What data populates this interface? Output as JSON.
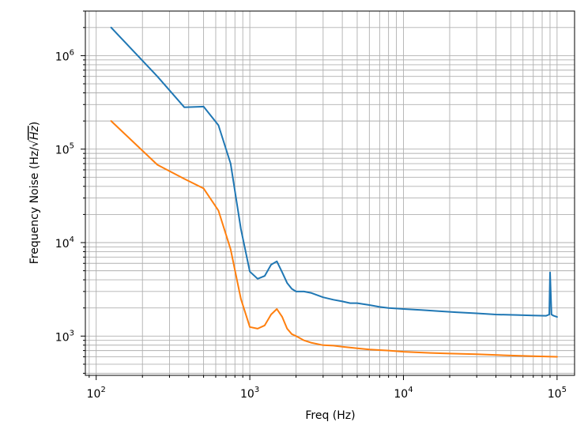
{
  "chart_data": {
    "type": "line",
    "title": "",
    "xlabel": "Freq (Hz)",
    "ylabel_main": "Frequency Noise (Hz/",
    "ylabel_sqrt": "√",
    "ylabel_radicand": "Hz",
    "ylabel_close": ")",
    "x_scale": "log",
    "y_scale": "log",
    "xlim": [
      85,
      130000
    ],
    "ylim": [
      380,
      3000000
    ],
    "grid": "both (major and minor)",
    "legend": "none",
    "x_ticks": [
      {
        "value": 100,
        "base": "10",
        "exp": "2"
      },
      {
        "value": 1000,
        "base": "10",
        "exp": "3"
      },
      {
        "value": 10000,
        "base": "10",
        "exp": "4"
      },
      {
        "value": 100000,
        "base": "10",
        "exp": "5"
      }
    ],
    "y_ticks": [
      {
        "value": 1000,
        "base": "10",
        "exp": "3"
      },
      {
        "value": 10000,
        "base": "10",
        "exp": "4"
      },
      {
        "value": 100000,
        "base": "10",
        "exp": "5"
      },
      {
        "value": 1000000,
        "base": "10",
        "exp": "6"
      }
    ],
    "series": [
      {
        "color": "#1f77b4",
        "x": [
          125,
          250,
          375,
          500,
          625,
          750,
          875,
          1000,
          1125,
          1250,
          1375,
          1500,
          1625,
          1750,
          1875,
          2000,
          2250,
          2500,
          3000,
          3500,
          4000,
          4500,
          5000,
          6000,
          7000,
          8000,
          10000,
          13000,
          17000,
          22000,
          30000,
          40000,
          55000,
          70000,
          85000,
          89000,
          90000,
          92000,
          95000,
          100000
        ],
        "y": [
          2000000,
          600000,
          280000,
          285000,
          180000,
          70000,
          14000,
          4900,
          4100,
          4400,
          5800,
          6300,
          4800,
          3700,
          3200,
          3000,
          3000,
          2900,
          2600,
          2450,
          2350,
          2250,
          2250,
          2150,
          2050,
          2000,
          1950,
          1900,
          1850,
          1800,
          1750,
          1700,
          1680,
          1660,
          1650,
          1700,
          4800,
          1700,
          1650,
          1600
        ]
      },
      {
        "color": "#ff7f0e",
        "x": [
          125,
          250,
          375,
          500,
          625,
          750,
          875,
          1000,
          1125,
          1250,
          1375,
          1500,
          1625,
          1750,
          1875,
          2000,
          2250,
          2500,
          3000,
          3500,
          4000,
          5000,
          6000,
          8000,
          10000,
          15000,
          20000,
          30000,
          50000,
          70000,
          100000
        ],
        "y": [
          200000,
          68000,
          48000,
          38000,
          22000,
          8500,
          2500,
          1250,
          1200,
          1300,
          1700,
          1950,
          1600,
          1200,
          1050,
          1000,
          900,
          850,
          800,
          790,
          770,
          740,
          720,
          700,
          680,
          660,
          650,
          640,
          620,
          610,
          600
        ]
      }
    ]
  }
}
